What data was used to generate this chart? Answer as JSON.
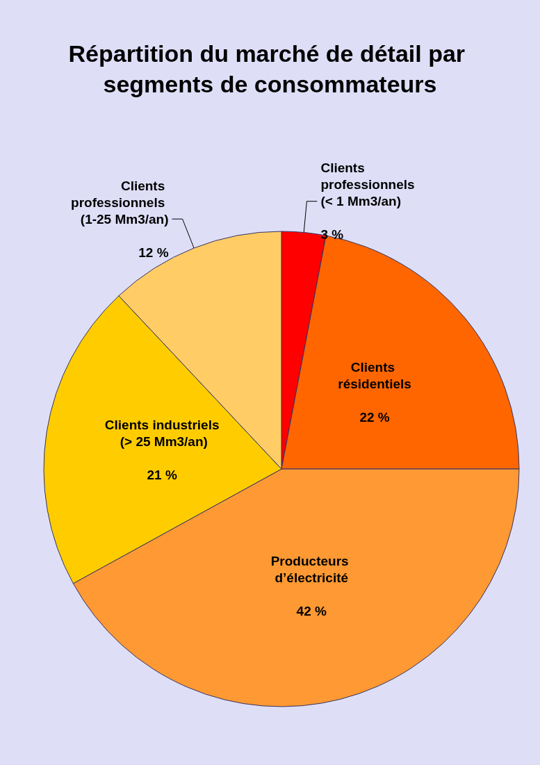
{
  "chart_data": {
    "type": "pie",
    "title": "Répartition du marché de détail par segments de consommateurs",
    "categories": [
      "Clients professionnels (< 1 Mm3/an)",
      "Clients résidentiels",
      "Producteurs d’électricité",
      "Clients industriels (> 25 Mm3/an)",
      "Clients professionnels (1-25 Mm3/an)"
    ],
    "values": [
      3,
      22,
      42,
      21,
      12
    ],
    "value_labels": [
      "3 %",
      "22 %",
      "42 %",
      "21 %",
      "12 %"
    ],
    "colors": [
      "#ff0000",
      "#ff6600",
      "#ff9933",
      "#ffcc00",
      "#ffcc66"
    ]
  }
}
